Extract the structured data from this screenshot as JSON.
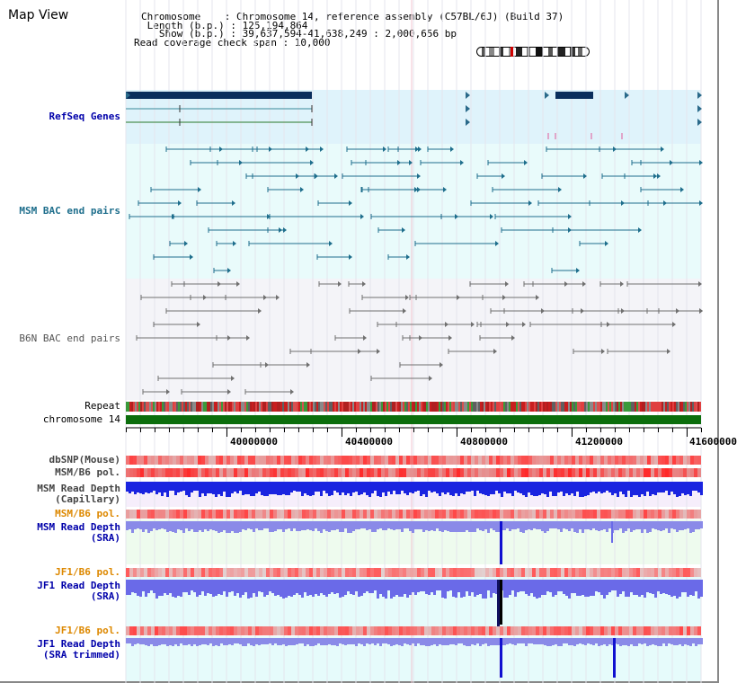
{
  "view_title": "Map View",
  "info": {
    "chromosome": "Chromosome    : Chromosome 14, reference assembly (C57BL/6J) (Build 37)",
    "length": " Length (b.p.) : 125,194,864",
    "show": "   Show (b.p.) : 39,637,594-41,638,249 : 2,000,656 bp",
    "span": "Read coverage check span : 10,000"
  },
  "tracks": {
    "refseq": "RefSeq Genes",
    "msm_bac": "MSM BAC end pairs",
    "b6n_bac": "B6N BAC end pairs",
    "repeat": "Repeat",
    "chromosome": "chromosome 14",
    "dbsnp": "dbSNP(Mouse)",
    "msm_b6_pol": "MSM/B6 pol.",
    "msm_depth_cap_1": "MSM Read Depth",
    "msm_depth_cap_2": "(Capillary)",
    "msm_b6_pol_2": "MSM/B6 pol.",
    "msm_depth_sra_1": "MSM Read Depth",
    "msm_depth_sra_2": "(SRA)",
    "jf1_b6_pol": "JF1/B6 pol.",
    "jf1_depth_sra_1": "JF1 Read Depth",
    "jf1_depth_sra_2": "(SRA)",
    "jf1_b6_pol_2": "JF1/B6 pol.",
    "jf1_depth_trim_1": "JF1 Read Depth",
    "jf1_depth_trim_2": "(SRA trimmed)"
  },
  "axis": {
    "ticks": [
      "40000000",
      "40400000",
      "40800000",
      "41200000",
      "41600000"
    ]
  },
  "colors": {
    "refseq_bg": "#dff3fb",
    "msm_bg": "#e9fbfb",
    "b6n_bg": "#f4f4f8",
    "gene_dark": "#0a2e5c",
    "msm_line": "#1e6e8c",
    "b6n_line": "#707070",
    "chrom_green": "#0c6e0c",
    "depth_blue": "#1a24e0",
    "label_blue": "#0000aa",
    "label_teal": "#1e6e8c",
    "label_orange": "#dd8800"
  }
}
